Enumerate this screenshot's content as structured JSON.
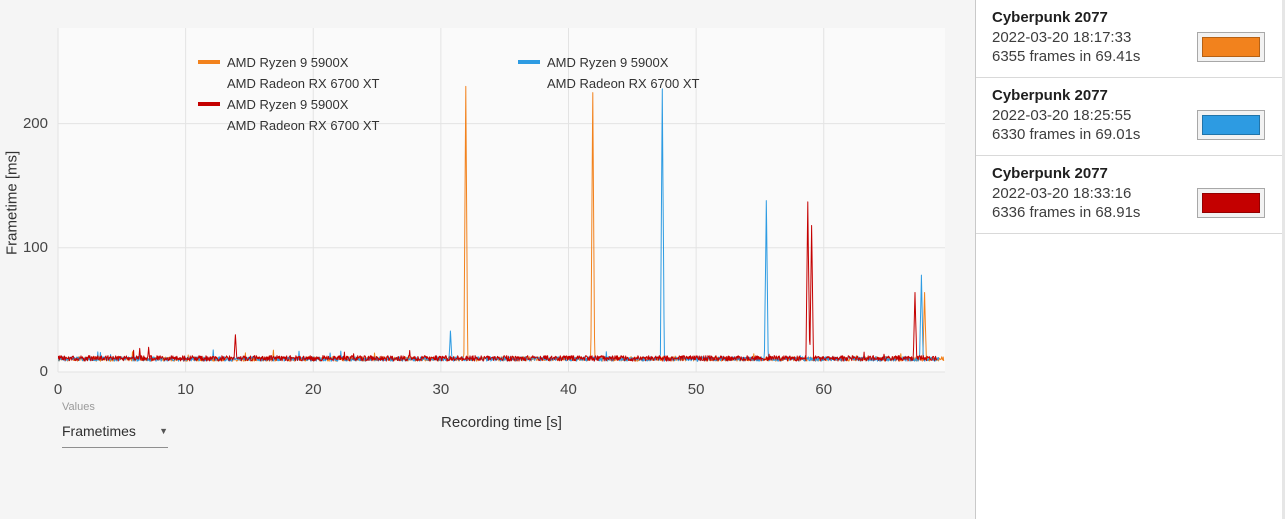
{
  "chart": {
    "x_ticks": [
      0,
      10,
      20,
      30,
      40,
      50,
      60
    ],
    "y_ticks": [
      0,
      100,
      200
    ],
    "legend": [
      {
        "color": "#F2821D",
        "line1": "AMD Ryzen 9 5900X",
        "line2": "AMD Radeon RX 6700 XT"
      },
      {
        "color": "#C40000",
        "line1": "AMD Ryzen 9 5900X",
        "line2": "AMD Radeon RX 6700 XT"
      },
      {
        "color": "#2D9BE2",
        "line1": "AMD Ryzen 9 5900X",
        "line2": "AMD Radeon RX 6700 XT"
      }
    ]
  },
  "chart_data": {
    "type": "line",
    "title": "",
    "xlabel": "Recording time [s]",
    "ylabel": "Frametime [ms]",
    "xlim": [
      0,
      69.5
    ],
    "ylim": [
      0,
      277
    ],
    "grid": true,
    "legend_position": "top-inside",
    "series": [
      {
        "name": "AMD Ryzen 9 5900X AMD Radeon RX 6700 XT (2022-03-20 18:17:33)",
        "color": "#F2821D",
        "duration_s": 69.41,
        "baseline_ms": 10.5,
        "noise_ms": 1.8,
        "spikes": [
          {
            "x": 31.95,
            "peak": 230
          },
          {
            "x": 41.9,
            "peak": 225
          },
          {
            "x": 67.9,
            "peak": 64
          }
        ]
      },
      {
        "name": "AMD Ryzen 9 5900X AMD Radeon RX 6700 XT (2022-03-20 18:25:55)",
        "color": "#2D9BE2",
        "duration_s": 69.01,
        "baseline_ms": 10.5,
        "noise_ms": 1.8,
        "spikes": [
          {
            "x": 30.75,
            "peak": 33
          },
          {
            "x": 47.35,
            "peak": 228
          },
          {
            "x": 55.5,
            "peak": 138
          },
          {
            "x": 67.65,
            "peak": 78
          }
        ]
      },
      {
        "name": "AMD Ryzen 9 5900X AMD Radeon RX 6700 XT (2022-03-20 18:33:16)",
        "color": "#C40000",
        "duration_s": 68.91,
        "baseline_ms": 11,
        "noise_ms": 2.2,
        "spikes": [
          {
            "x": 6.4,
            "peak": 19
          },
          {
            "x": 7.1,
            "peak": 20
          },
          {
            "x": 13.9,
            "peak": 30
          },
          {
            "x": 58.75,
            "peak": 137
          },
          {
            "x": 59.05,
            "peak": 118
          },
          {
            "x": 67.15,
            "peak": 64
          }
        ]
      }
    ]
  },
  "controls": {
    "values_label": "Values",
    "selected_value": "Frametimes",
    "dropdown_icon": "▼"
  },
  "sessions": [
    {
      "title": "Cyberpunk 2077",
      "datetime": "2022-03-20 18:17:33",
      "frames": "6355 frames in 69.41s",
      "color": "#F2821D"
    },
    {
      "title": "Cyberpunk 2077",
      "datetime": "2022-03-20 18:25:55",
      "frames": "6330 frames in 69.01s",
      "color": "#2D9BE2"
    },
    {
      "title": "Cyberpunk 2077",
      "datetime": "2022-03-20 18:33:16",
      "frames": "6336 frames in 68.91s",
      "color": "#C40000"
    }
  ]
}
